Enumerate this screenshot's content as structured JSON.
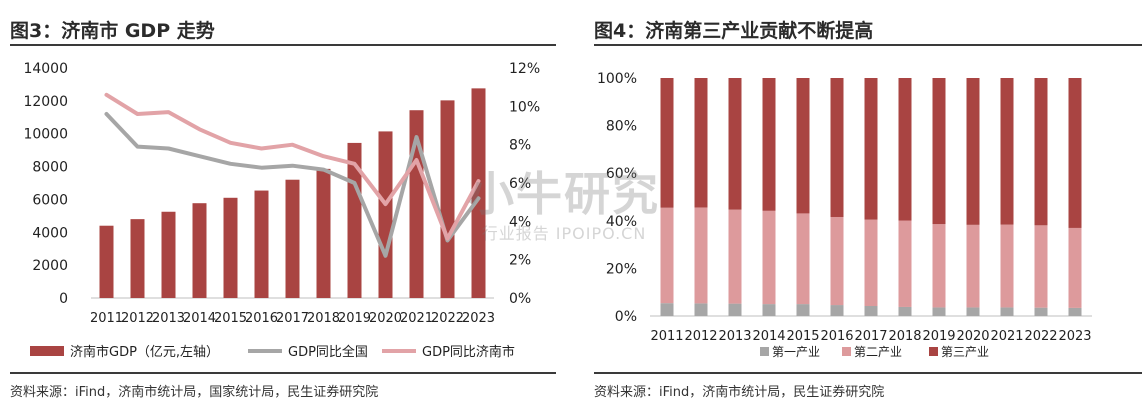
{
  "left_panel": {
    "title": "图3：济南市 GDP 走势",
    "source": "资料来源：iFind，济南市统计局，国家统计局，民生证券研究院"
  },
  "right_panel": {
    "title": "图4：济南第三产业贡献不断提高",
    "source": "资料来源：iFind，济南市统计局，民生证券研究院"
  },
  "watermark": {
    "main": "小牛研究",
    "sub": "行业报告 IPOIPO.CN"
  },
  "colors": {
    "dark_red": "#A94442",
    "pink": "#DD9A9C",
    "gray": "#A6A6A6",
    "line_pink": "#E2A3A7"
  },
  "chart_data": [
    {
      "type": "bar",
      "categories": [
        "2011",
        "2012",
        "2013",
        "2014",
        "2015",
        "2016",
        "2017",
        "2018",
        "2019",
        "2020",
        "2021",
        "2022",
        "2023"
      ],
      "left_axis": {
        "ylim": [
          0,
          14000
        ],
        "ticks": [
          "0",
          "2000",
          "4000",
          "6000",
          "8000",
          "10000",
          "12000",
          "14000"
        ]
      },
      "right_axis": {
        "ylim": [
          0,
          12
        ],
        "ticks": [
          "0%",
          "2%",
          "4%",
          "6%",
          "8%",
          "10%",
          "12%"
        ]
      },
      "series": [
        {
          "name": "济南市GDP（亿元,左轴）",
          "type": "bar",
          "axis": "left",
          "color": "#A94442",
          "values": [
            4400,
            4800,
            5250,
            5770,
            6100,
            6540,
            7200,
            7860,
            9440,
            10140,
            11430,
            12030,
            12760
          ]
        },
        {
          "name": "GDP同比全国",
          "type": "line",
          "axis": "right",
          "color": "#A6A6A6",
          "values": [
            9.6,
            7.9,
            7.8,
            7.4,
            7.0,
            6.8,
            6.9,
            6.7,
            6.0,
            2.2,
            8.4,
            3.0,
            5.2
          ]
        },
        {
          "name": "GDP同比济南市",
          "type": "line",
          "axis": "right",
          "color": "#E2A3A7",
          "values": [
            10.6,
            9.6,
            9.7,
            8.8,
            8.1,
            7.8,
            8.0,
            7.4,
            7.0,
            4.9,
            7.2,
            3.1,
            6.1
          ]
        }
      ],
      "legend_position": "bottom"
    },
    {
      "type": "bar",
      "stacked": true,
      "categories": [
        "2011",
        "2012",
        "2013",
        "2014",
        "2015",
        "2016",
        "2017",
        "2018",
        "2019",
        "2020",
        "2021",
        "2022",
        "2023"
      ],
      "ylim": [
        0,
        100
      ],
      "ticks": [
        "0%",
        "20%",
        "40%",
        "60%",
        "80%",
        "100%"
      ],
      "series": [
        {
          "name": "第一产业",
          "color": "#A6A6A6",
          "values": [
            5.4,
            5.3,
            5.2,
            5.0,
            5.0,
            4.6,
            4.2,
            3.8,
            3.6,
            3.6,
            3.6,
            3.5,
            3.4
          ]
        },
        {
          "name": "第二产业",
          "color": "#DD9A9C",
          "values": [
            40.1,
            40.3,
            39.5,
            39.2,
            38.1,
            37.0,
            36.3,
            36.3,
            35.0,
            34.7,
            34.8,
            34.6,
            33.6
          ]
        },
        {
          "name": "第三产业",
          "color": "#A94442",
          "values": [
            54.5,
            54.4,
            55.3,
            55.8,
            56.9,
            58.4,
            59.5,
            59.9,
            61.4,
            61.7,
            61.6,
            61.9,
            63.0
          ]
        }
      ],
      "legend_position": "bottom"
    }
  ]
}
